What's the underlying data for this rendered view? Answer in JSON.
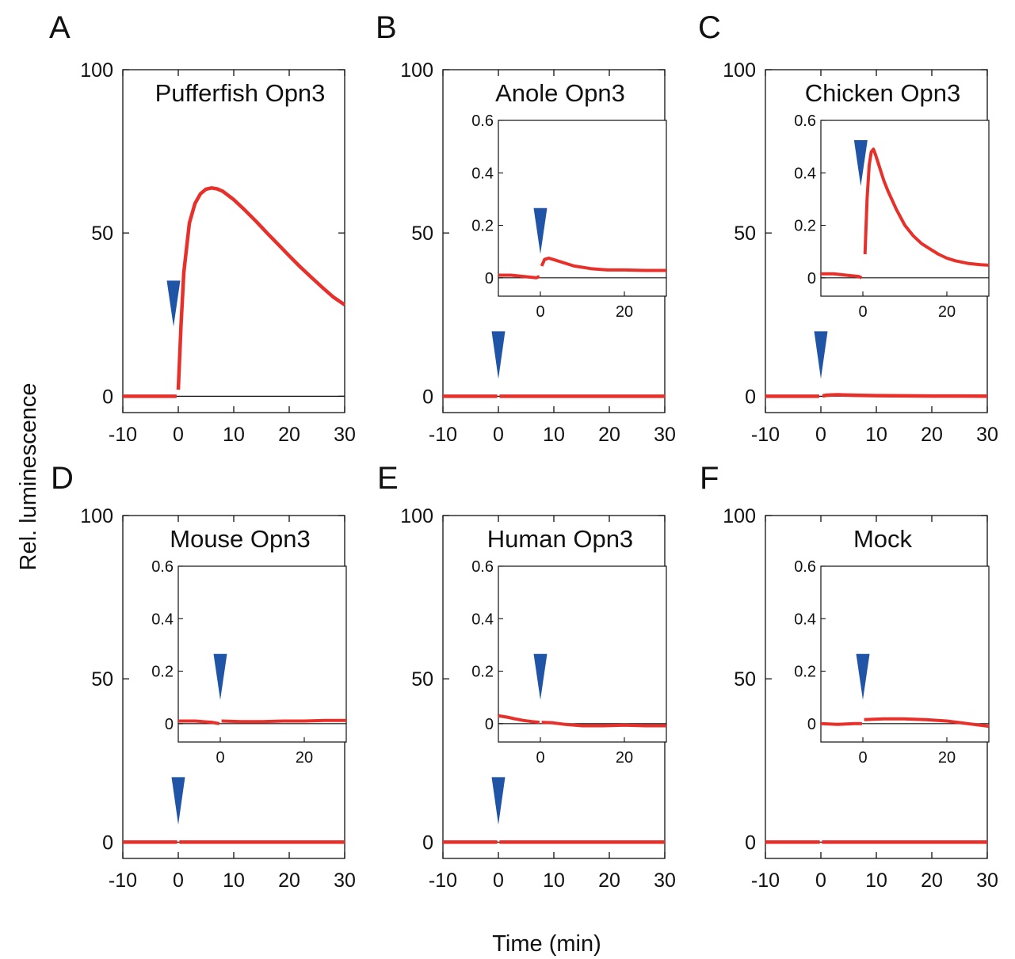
{
  "figure": {
    "ylabel": "Rel. luminescence",
    "xlabel": "Time (min)"
  },
  "colors": {
    "trace": "#e8302b",
    "arrowhead": "#1f54a6",
    "axis": "#111111"
  },
  "chart_data": [
    {
      "panel": "A",
      "type": "line",
      "title": "Pufferfish Opn3",
      "xlim": [
        -10,
        30
      ],
      "ylim": [
        -5,
        100
      ],
      "xticks": [
        -10,
        0,
        10,
        20,
        30
      ],
      "xtick_labels": [
        "-10",
        "0",
        "10",
        "20",
        "30"
      ],
      "yticks": [
        0,
        50,
        100
      ],
      "ytick_labels": [
        "0",
        "50",
        "100"
      ],
      "light_onset": 0,
      "series": [
        {
          "segments": [
            {
              "x": [
                -10,
                -0.3
              ],
              "y": [
                0,
                0
              ]
            },
            {
              "x": [
                0,
                0.5,
                1,
                2,
                3,
                4,
                5,
                6,
                7,
                8,
                10,
                12,
                14,
                16,
                18,
                20,
                22,
                24,
                26,
                28,
                30
              ],
              "y": [
                2,
                22,
                38,
                53,
                59,
                62,
                63.4,
                63.8,
                63.5,
                62.8,
                60.2,
                57,
                53.6,
                50,
                46.5,
                43,
                39.6,
                36.4,
                33.3,
                30.3,
                28
              ]
            }
          ]
        }
      ],
      "inset": null
    },
    {
      "panel": "B",
      "type": "line",
      "title": "Anole Opn3",
      "xlim": [
        -10,
        30
      ],
      "ylim": [
        -5,
        100
      ],
      "xticks": [
        -10,
        0,
        10,
        20,
        30
      ],
      "xtick_labels": [
        "-10",
        "0",
        "10",
        "20",
        "30"
      ],
      "yticks": [
        0,
        50,
        100
      ],
      "ytick_labels": [
        "0",
        "50",
        "100"
      ],
      "light_onset": 0,
      "series": [
        {
          "segments": [
            {
              "x": [
                -10,
                -0.2
              ],
              "y": [
                0,
                0
              ]
            },
            {
              "x": [
                0.2,
                30
              ],
              "y": [
                0,
                0
              ]
            }
          ]
        }
      ],
      "inset": {
        "xlim": [
          -10,
          30
        ],
        "ylim": [
          -0.07,
          0.6
        ],
        "xticks": [
          0,
          20
        ],
        "xtick_labels": [
          "0",
          "20"
        ],
        "yticks": [
          0,
          0.2,
          0.4,
          0.6
        ],
        "ytick_labels": [
          "0",
          "0.2",
          "0.4",
          "0.6"
        ],
        "light_onset": 0,
        "segments": [
          {
            "x": [
              -10,
              -7,
              -4,
              -1,
              -0.2
            ],
            "y": [
              0.01,
              0.01,
              0.005,
              0,
              0.005
            ]
          },
          {
            "x": [
              0.3,
              1,
              2,
              3,
              5,
              8,
              12,
              16,
              20,
              25,
              30
            ],
            "y": [
              0.045,
              0.07,
              0.075,
              0.07,
              0.06,
              0.045,
              0.035,
              0.03,
              0.03,
              0.028,
              0.028
            ]
          }
        ]
      }
    },
    {
      "panel": "C",
      "type": "line",
      "title": "Chicken Opn3",
      "xlim": [
        -10,
        30
      ],
      "ylim": [
        -5,
        100
      ],
      "xticks": [
        -10,
        0,
        10,
        20,
        30
      ],
      "xtick_labels": [
        "-10",
        "0",
        "10",
        "20",
        "30"
      ],
      "yticks": [
        0,
        50,
        100
      ],
      "ytick_labels": [
        "0",
        "50",
        "100"
      ],
      "light_onset": 0,
      "series": [
        {
          "segments": [
            {
              "x": [
                -10,
                -0.3
              ],
              "y": [
                0,
                0
              ]
            },
            {
              "x": [
                0.3,
                1,
                2,
                3,
                4,
                6,
                10,
                15,
                20,
                25,
                30
              ],
              "y": [
                0.1,
                0.3,
                0.4,
                0.45,
                0.4,
                0.3,
                0.2,
                0.12,
                0.08,
                0.06,
                0.05
              ]
            }
          ]
        }
      ],
      "inset": {
        "xlim": [
          -10,
          30
        ],
        "ylim": [
          -0.07,
          0.6
        ],
        "xticks": [
          0,
          20
        ],
        "xtick_labels": [
          "0",
          "20"
        ],
        "yticks": [
          0,
          0.2,
          0.4,
          0.6
        ],
        "ytick_labels": [
          "0",
          "0.2",
          "0.4",
          "0.6"
        ],
        "light_onset": -0.5,
        "segments": [
          {
            "x": [
              -10,
              -7,
              -4,
              -1,
              -0.3
            ],
            "y": [
              0.015,
              0.015,
              0.01,
              0.005,
              0
            ]
          },
          {
            "x": [
              0.5,
              1,
              1.5,
              2,
              2.5,
              3,
              4,
              5,
              6,
              8,
              10,
              12,
              14,
              16,
              18,
              20,
              22,
              25,
              28,
              30
            ],
            "y": [
              0.09,
              0.3,
              0.43,
              0.48,
              0.49,
              0.47,
              0.42,
              0.37,
              0.33,
              0.26,
              0.2,
              0.16,
              0.13,
              0.11,
              0.09,
              0.075,
              0.065,
              0.055,
              0.05,
              0.048
            ]
          }
        ]
      }
    },
    {
      "panel": "D",
      "type": "line",
      "title": "Mouse Opn3",
      "xlim": [
        -10,
        30
      ],
      "ylim": [
        -5,
        100
      ],
      "xticks": [
        -10,
        0,
        10,
        20,
        30
      ],
      "xtick_labels": [
        "-10",
        "0",
        "10",
        "20",
        "30"
      ],
      "yticks": [
        0,
        50,
        100
      ],
      "ytick_labels": [
        "0",
        "50",
        "100"
      ],
      "light_onset": 0,
      "series": [
        {
          "segments": [
            {
              "x": [
                -10,
                -0.2
              ],
              "y": [
                0,
                0
              ]
            },
            {
              "x": [
                0.2,
                30
              ],
              "y": [
                0,
                0
              ]
            }
          ]
        }
      ],
      "inset": {
        "xlim": [
          -10,
          30
        ],
        "ylim": [
          -0.07,
          0.6
        ],
        "xticks": [
          0,
          20
        ],
        "xtick_labels": [
          "0",
          "20"
        ],
        "yticks": [
          0,
          0.2,
          0.4,
          0.6
        ],
        "ytick_labels": [
          "0",
          "0.2",
          "0.4",
          "0.6"
        ],
        "light_onset": 0,
        "segments": [
          {
            "x": [
              -10,
              -6,
              -2,
              -0.2
            ],
            "y": [
              0.01,
              0.01,
              0.005,
              0
            ]
          },
          {
            "x": [
              0.3,
              5,
              10,
              15,
              20,
              25,
              30
            ],
            "y": [
              0.01,
              0.008,
              0.008,
              0.01,
              0.01,
              0.012,
              0.012
            ]
          }
        ]
      }
    },
    {
      "panel": "E",
      "type": "line",
      "title": "Human Opn3",
      "xlim": [
        -10,
        30
      ],
      "ylim": [
        -5,
        100
      ],
      "xticks": [
        -10,
        0,
        10,
        20,
        30
      ],
      "xtick_labels": [
        "-10",
        "0",
        "10",
        "20",
        "30"
      ],
      "yticks": [
        0,
        50,
        100
      ],
      "ytick_labels": [
        "0",
        "50",
        "100"
      ],
      "light_onset": 0,
      "series": [
        {
          "segments": [
            {
              "x": [
                -10,
                -0.2
              ],
              "y": [
                0,
                0
              ]
            },
            {
              "x": [
                0.2,
                30
              ],
              "y": [
                0,
                0
              ]
            }
          ]
        }
      ],
      "inset": {
        "xlim": [
          -10,
          30
        ],
        "ylim": [
          -0.07,
          0.6
        ],
        "xticks": [
          0,
          20
        ],
        "xtick_labels": [
          "0",
          "20"
        ],
        "yticks": [
          0,
          0.2,
          0.4,
          0.6
        ],
        "ytick_labels": [
          "0",
          "0.2",
          "0.4",
          "0.6"
        ],
        "light_onset": 0,
        "segments": [
          {
            "x": [
              -10,
              -8,
              -6,
              -4,
              -2,
              -0.2
            ],
            "y": [
              0.03,
              0.025,
              0.018,
              0.012,
              0.008,
              0.005
            ]
          },
          {
            "x": [
              0.3,
              3,
              6,
              10,
              15,
              20,
              25,
              30
            ],
            "y": [
              0.005,
              0.003,
              -0.003,
              -0.008,
              -0.008,
              -0.006,
              -0.008,
              -0.008
            ]
          }
        ]
      }
    },
    {
      "panel": "F",
      "type": "line",
      "title": "Mock",
      "xlim": [
        -10,
        30
      ],
      "ylim": [
        -5,
        100
      ],
      "xticks": [
        -10,
        0,
        10,
        20,
        30
      ],
      "xtick_labels": [
        "-10",
        "0",
        "10",
        "20",
        "30"
      ],
      "yticks": [
        0,
        50,
        100
      ],
      "ytick_labels": [
        "0",
        "50",
        "100"
      ],
      "light_onset": null,
      "series": [
        {
          "segments": [
            {
              "x": [
                -10,
                -0.2
              ],
              "y": [
                0,
                0
              ]
            },
            {
              "x": [
                0.2,
                30
              ],
              "y": [
                0,
                0
              ]
            }
          ]
        }
      ],
      "inset": {
        "xlim": [
          -10,
          30
        ],
        "ylim": [
          -0.07,
          0.6
        ],
        "xticks": [
          0,
          20
        ],
        "xtick_labels": [
          "0",
          "20"
        ],
        "yticks": [
          0,
          0.2,
          0.4,
          0.6
        ],
        "ytick_labels": [
          "0",
          "0.2",
          "0.4",
          "0.6"
        ],
        "light_onset": 0,
        "segments": [
          {
            "x": [
              -10,
              -6,
              -2,
              -0.2
            ],
            "y": [
              0,
              -0.003,
              0,
              0
            ]
          },
          {
            "x": [
              0.3,
              5,
              10,
              15,
              20,
              25,
              30
            ],
            "y": [
              0.015,
              0.018,
              0.018,
              0.015,
              0.01,
              0,
              -0.01
            ]
          }
        ]
      }
    }
  ]
}
